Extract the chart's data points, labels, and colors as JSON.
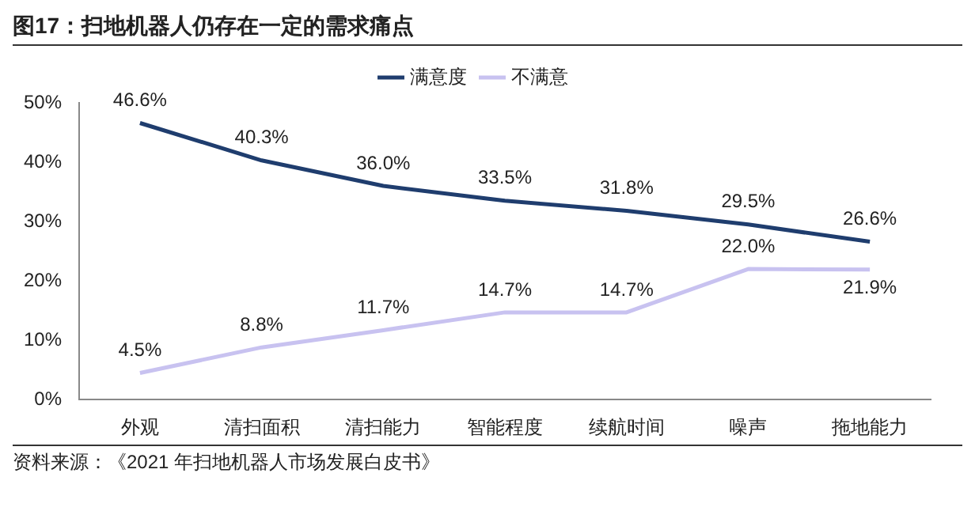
{
  "chart_data": {
    "type": "line",
    "title": "图17：扫地机器人仍存在一定的需求痛点",
    "categories": [
      "外观",
      "清扫面积",
      "清扫能力",
      "智能程度",
      "续航时间",
      "噪声",
      "拖地能力"
    ],
    "series": [
      {
        "name": "满意度",
        "color": "#1f3d6e",
        "values": [
          46.6,
          40.3,
          36.0,
          33.5,
          31.8,
          29.5,
          26.6
        ],
        "value_labels": [
          "46.6%",
          "40.3%",
          "36.0%",
          "33.5%",
          "31.8%",
          "29.5%",
          "26.6%"
        ]
      },
      {
        "name": "不满意",
        "color": "#c8c2f0",
        "values": [
          4.5,
          8.8,
          11.7,
          14.7,
          14.7,
          22.0,
          21.9
        ],
        "value_labels": [
          "4.5%",
          "8.8%",
          "11.7%",
          "14.7%",
          "14.7%",
          "22.0%",
          "21.9%"
        ]
      }
    ],
    "ylim": [
      0,
      50
    ],
    "yticks": [
      {
        "value": 0,
        "label": "0%"
      },
      {
        "value": 10,
        "label": "10%"
      },
      {
        "value": 20,
        "label": "20%"
      },
      {
        "value": 30,
        "label": "30%"
      },
      {
        "value": 40,
        "label": "40%"
      },
      {
        "value": 50,
        "label": "50%"
      }
    ],
    "grid": false,
    "legend": "top",
    "marker": "none",
    "line_style": "solid",
    "annotations": [
      "资料来源：《2021 年扫地机器人市场发展白皮书》"
    ]
  }
}
